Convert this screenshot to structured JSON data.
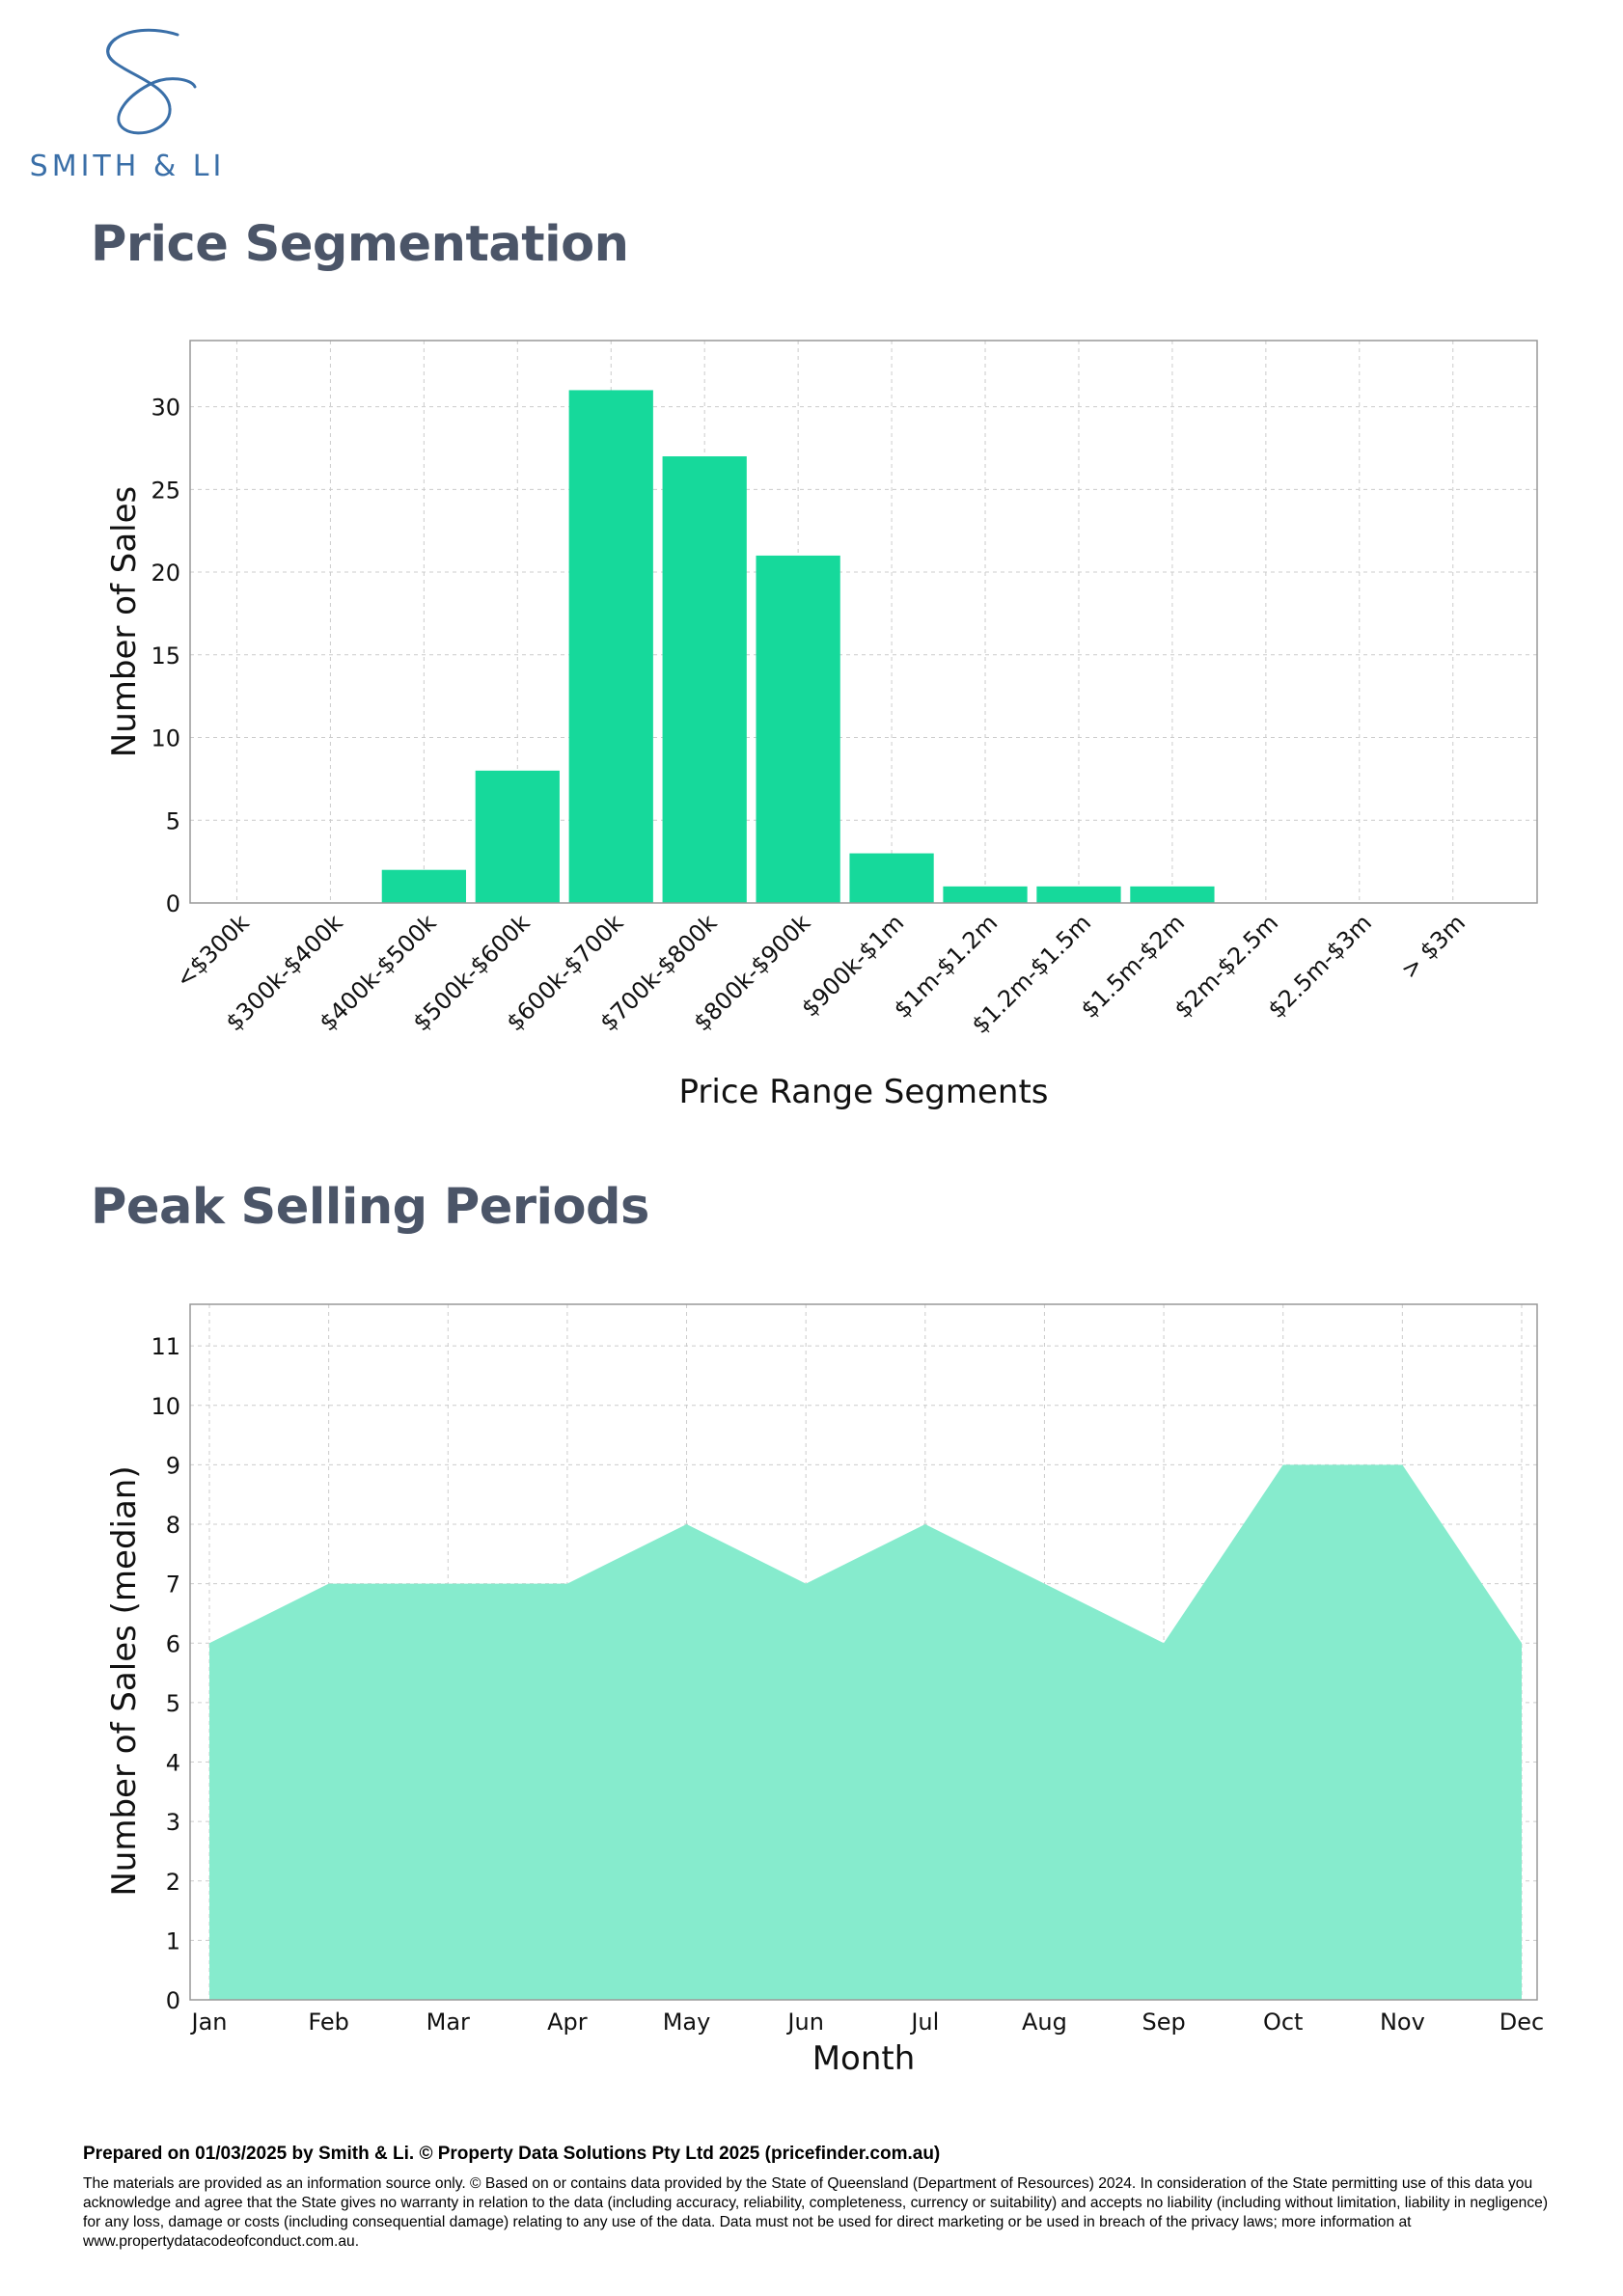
{
  "logo": {
    "text": "SMITH & LI",
    "color": "#3a6fa8"
  },
  "sections": {
    "price_title": "Price Segmentation",
    "peak_title": "Peak Selling Periods"
  },
  "colors": {
    "bar": "#16d99b",
    "area": "#86ebcd",
    "title": "#4b5568"
  },
  "chart_data": [
    {
      "type": "bar",
      "categories": [
        "<$300k",
        "$300k-$400k",
        "$400k-$500k",
        "$500k-$600k",
        "$600k-$700k",
        "$700k-$800k",
        "$800k-$900k",
        "$900k-$1m",
        "$1m-$1.2m",
        "$1.2m-$1.5m",
        "$1.5m-$2m",
        "$2m-$2.5m",
        "$2.5m-$3m",
        "> $3m"
      ],
      "values": [
        0,
        0,
        2,
        8,
        31,
        27,
        21,
        3,
        1,
        1,
        1,
        0,
        0,
        0
      ],
      "title": "",
      "xlabel": "Price Range Segments",
      "ylabel": "Number of Sales",
      "ylim": [
        0,
        34
      ],
      "yticks": [
        0,
        5,
        10,
        15,
        20,
        25,
        30
      ],
      "grid": true
    },
    {
      "type": "area",
      "categories": [
        "Jan",
        "Feb",
        "Mar",
        "Apr",
        "May",
        "Jun",
        "Jul",
        "Aug",
        "Sep",
        "Oct",
        "Nov",
        "Dec"
      ],
      "values": [
        6,
        7,
        7,
        7,
        8,
        7,
        8,
        7,
        6,
        9,
        9,
        6
      ],
      "title": "",
      "xlabel": "Month",
      "ylabel": "Number of Sales (median)",
      "ylim": [
        0,
        11.7
      ],
      "yticks": [
        0,
        1,
        2,
        3,
        4,
        5,
        6,
        7,
        8,
        9,
        10,
        11
      ],
      "grid": true
    }
  ],
  "footer": {
    "prepared": "Prepared on 01/03/2025 by Smith & Li. © Property Data Solutions Pty Ltd 2025 (pricefinder.com.au)",
    "disclaimer": "The materials are provided as an information source only.  © Based on or contains data provided by the State of Queensland (Department of Resources) 2024. In consideration of the State permitting use of this data you acknowledge and agree that the State gives no warranty in relation to the data (including accuracy, reliability, completeness, currency or suitability) and accepts no liability (including without limitation, liability in negligence) for any loss, damage or costs (including consequential damage) relating to any use of the data. Data must not be used for direct marketing or be used in breach of the privacy laws; more information at www.propertydatacodeofconduct.com.au."
  }
}
